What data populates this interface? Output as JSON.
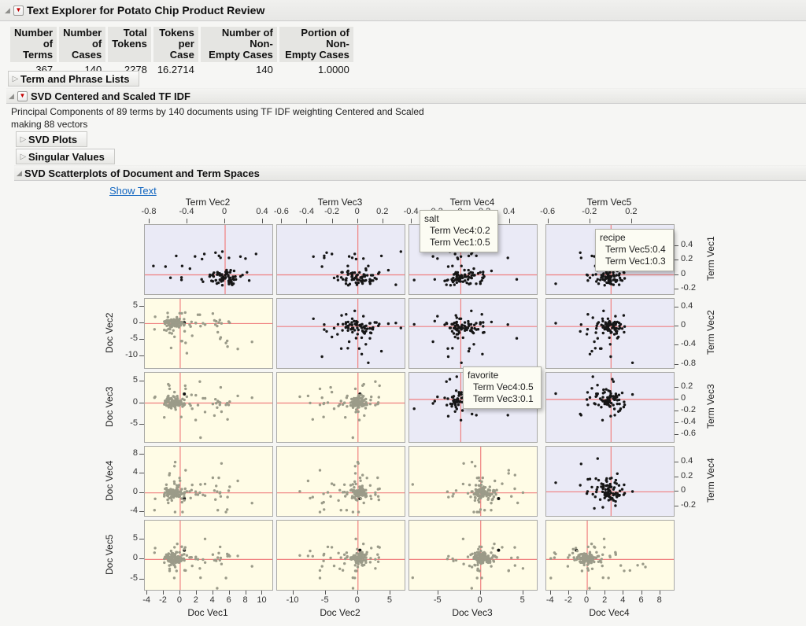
{
  "window": {
    "title": "Text Explorer for Potato Chip Product Review"
  },
  "summary_table": {
    "columns": [
      {
        "line1": "Number",
        "line2": "of Terms"
      },
      {
        "line1": "Number",
        "line2": "of Cases"
      },
      {
        "line1": "Total",
        "line2": "Tokens"
      },
      {
        "line1": "Tokens",
        "line2": "per Case"
      },
      {
        "line1": "Number of Non-",
        "line2": "Empty Cases"
      },
      {
        "line1": "Portion of Non-",
        "line2": "Empty Cases"
      }
    ],
    "values": [
      "367",
      "140",
      "2278",
      "16.2714",
      "140",
      "1.0000"
    ]
  },
  "sections": {
    "term_phrase": {
      "label": "Term and Phrase Lists",
      "state": "collapsed"
    },
    "svd": {
      "label": "SVD Centered and Scaled TF IDF",
      "state": "expanded"
    },
    "svd_desc_line1": "Principal Components of 89 terms by 140 documents using TF IDF weighting Centered and Scaled",
    "svd_desc_line2": "making 88 vectors",
    "svd_plots": {
      "label": "SVD Plots",
      "state": "collapsed"
    },
    "singular_values": {
      "label": "Singular Values",
      "state": "collapsed"
    },
    "scatterplots": {
      "label": "SVD Scatterplots of Document and Term Spaces",
      "state": "expanded"
    }
  },
  "show_text_label": "Show Text",
  "tooltips": [
    {
      "title": "salt",
      "lines": [
        "Term Vec4:0.2",
        "Term Vec1:0.5"
      ]
    },
    {
      "title": "recipe",
      "lines": [
        "Term Vec5:0.4",
        "Term Vec1:0.3"
      ]
    },
    {
      "title": "favorite",
      "lines": [
        "Term Vec4:0.5",
        "Term Vec3:0.1"
      ]
    }
  ],
  "chart_data": {
    "type": "scatter",
    "subtype": "scatterplot-matrix",
    "title": "SVD Scatterplots of Document and Term Spaces",
    "description": "5x4 matrix. Upper-right cells: Term vectors (black points on lavender). Lower-left cells: Document vectors (gray points on yellow). Red crosshairs mark 0,0.",
    "n_term_points": 89,
    "n_doc_points": 140,
    "grid": {
      "rows": 5,
      "cols": 4
    },
    "cell_types": [
      [
        "term",
        "term",
        "term",
        "term"
      ],
      [
        "doc",
        "term",
        "term",
        "term"
      ],
      [
        "doc",
        "doc",
        "term",
        "term"
      ],
      [
        "doc",
        "doc",
        "doc",
        "term"
      ],
      [
        "doc",
        "doc",
        "doc",
        "doc"
      ]
    ],
    "top_axes": [
      {
        "label": "Term Vec2",
        "ticks": [
          -0.8,
          -0.4,
          0,
          0.4
        ],
        "min": -0.85,
        "max": 0.5
      },
      {
        "label": "Term Vec3",
        "ticks": [
          -0.6,
          -0.4,
          -0.2,
          0,
          0.2
        ],
        "min": -0.64,
        "max": 0.37
      },
      {
        "label": "Term Vec4",
        "ticks": [
          -0.4,
          -0.2,
          0,
          0.2,
          0.4
        ],
        "min": -0.42,
        "max": 0.62
      },
      {
        "label": "Term Vec5",
        "ticks": [
          -0.6,
          -0.2,
          0.2
        ],
        "min": -0.62,
        "max": 0.6
      }
    ],
    "bottom_axes": [
      {
        "label": "Doc Vec1",
        "ticks": [
          -4,
          -2,
          0,
          2,
          4,
          6,
          8,
          10
        ],
        "min": -4.3,
        "max": 11.2
      },
      {
        "label": "Doc Vec2",
        "ticks": [
          -10,
          -5,
          0,
          5
        ],
        "min": -12.5,
        "max": 7.2
      },
      {
        "label": "Doc Vec3",
        "ticks": [
          -5,
          0,
          5
        ],
        "min": -8.4,
        "max": 6.6
      },
      {
        "label": "Doc Vec4",
        "ticks": [
          -4,
          -2,
          0,
          2,
          4,
          6,
          8
        ],
        "min": -4.5,
        "max": 9.5
      }
    ],
    "right_axes": [
      {
        "label": "Term Vec1",
        "ticks": [
          0.4,
          0.2,
          0,
          -0.2
        ],
        "top": 0.7,
        "bottom": -0.27
      },
      {
        "label": "Term Vec2",
        "ticks": [
          0.4,
          0,
          -0.4,
          -0.8
        ],
        "top": 0.58,
        "bottom": -0.87
      },
      {
        "label": "Term Vec3",
        "ticks": [
          0.2,
          0,
          -0.2,
          -0.4,
          -0.6
        ],
        "top": 0.45,
        "bottom": -0.72
      },
      {
        "label": "Term Vec4",
        "ticks": [
          0.4,
          0.2,
          0,
          -0.2
        ],
        "top": 0.62,
        "bottom": -0.33
      }
    ],
    "left_axes": [
      {
        "label": "Doc Vec2",
        "ticks": [
          5,
          0,
          -5,
          -10
        ],
        "top": 7.5,
        "bottom": -13.5
      },
      {
        "label": "Doc Vec3",
        "ticks": [
          5,
          0,
          -5
        ],
        "top": 7.0,
        "bottom": -9.0
      },
      {
        "label": "Doc Vec4",
        "ticks": [
          8,
          4,
          0,
          -4
        ],
        "top": 9.6,
        "bottom": -4.8
      },
      {
        "label": "Doc Vec5",
        "ticks": [
          5,
          0,
          -5
        ],
        "top": 9.7,
        "bottom": -7.6
      }
    ],
    "highlighted_points": [
      {
        "name": "salt",
        "cell_row": 0,
        "cell_col": 2,
        "x": 0.2,
        "y": 0.5
      },
      {
        "name": "recipe",
        "cell_row": 0,
        "cell_col": 3,
        "x": 0.4,
        "y": 0.3
      },
      {
        "name": "favorite",
        "cell_row": 2,
        "cell_col": 2,
        "x": 0.5,
        "y": 0.1
      }
    ],
    "selected_doc": {
      "v": [
        0.5,
        0.3,
        2.1,
        -1.2,
        2.3
      ]
    },
    "colors": {
      "term_bg": "#eaeaf6",
      "doc_bg": "#fffce6",
      "term_dot": "#161616",
      "doc_dot": "#9b9b89",
      "crosshair": "#f08080",
      "cell_border": "#a9a9a6"
    },
    "generator": {
      "seed": 1337,
      "term_outlier_p": 0.45,
      "term_tail_p": 0.65,
      "doc_outlier_p": 0.5,
      "doc_tail_p": 0.55,
      "term_dist": [
        {
          "c": [
            -0.05,
            0.05
          ],
          "t": [
            0.18,
            0.16
          ],
          "clip": [
            -0.24,
            0.62
          ]
        },
        {
          "c": [
            0,
            0.07
          ],
          "t": [
            -0.22,
            0.3
          ],
          "clip": [
            -0.83,
            0.52
          ]
        },
        {
          "c": [
            0,
            0.07
          ],
          "t": [
            -0.05,
            0.22
          ],
          "clip": [
            -0.66,
            0.4
          ]
        },
        {
          "c": [
            0.02,
            0.07
          ],
          "t": [
            0.03,
            0.22
          ],
          "clip": [
            -0.38,
            0.56
          ]
        },
        {
          "c": [
            0,
            0.07
          ],
          "t": [
            -0.12,
            0.22
          ],
          "clip": [
            -0.58,
            0.5
          ]
        }
      ],
      "doc_dist": [
        {
          "c": [
            -0.7,
            0.6
          ],
          "t": [
            2.2,
            2.6
          ],
          "clip": [
            -4,
            10.6
          ]
        },
        {
          "c": [
            0.2,
            0.6
          ],
          "t": [
            -1.5,
            3.2
          ],
          "clip": [
            -12.3,
            6.6
          ]
        },
        {
          "c": [
            0,
            0.55
          ],
          "t": [
            -0.2,
            2.6
          ],
          "clip": [
            -8,
            6.2
          ]
        },
        {
          "c": [
            0,
            0.6
          ],
          "t": [
            0.8,
            2.6
          ],
          "clip": [
            -4,
            9.3
          ]
        },
        {
          "c": [
            0.2,
            0.7
          ],
          "t": [
            0.3,
            2.8
          ],
          "clip": [
            -7.2,
            9.4
          ]
        }
      ]
    }
  }
}
